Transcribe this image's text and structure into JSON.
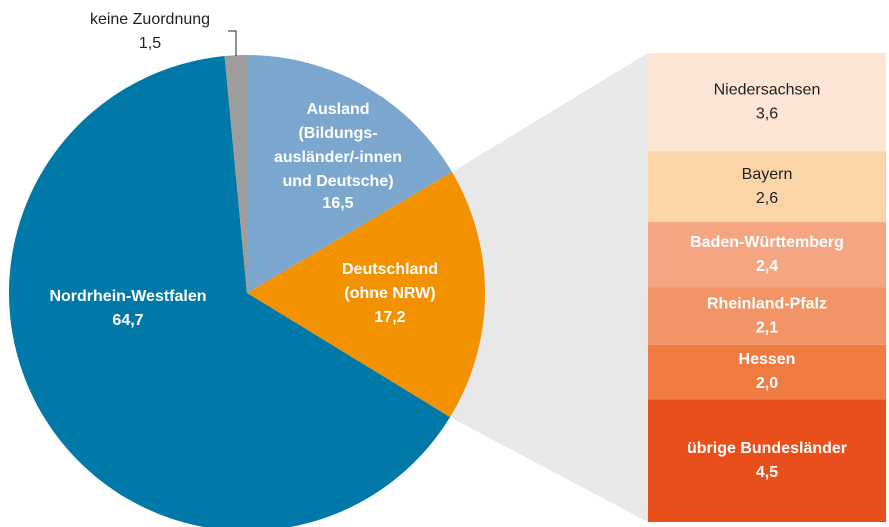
{
  "chart_data": {
    "type": "pie",
    "categories": [
      [
        "Ausland",
        "(Bildungs-",
        "ausländer/-innen",
        "und Deutsche)"
      ],
      [
        "Deutschland",
        "(ohne NRW)"
      ],
      [
        "Nordrhein-Westfalen"
      ],
      [
        "keine Zuordnung"
      ]
    ],
    "values": [
      16.5,
      17.2,
      64.7,
      1.5
    ],
    "value_labels": [
      "16,5",
      "17,2",
      "64,7",
      "1,5"
    ],
    "colors": [
      "#7ba7cf",
      "#f39200",
      "#0079a8",
      "#9d9d9d"
    ],
    "breakdown": {
      "type": "bar",
      "categories": [
        "Niedersachsen",
        "Bayern",
        "Baden-Württemberg",
        "Rheinland-Pfalz",
        "Hessen",
        "übrige Bundesländer"
      ],
      "values": [
        3.6,
        2.6,
        2.4,
        2.1,
        2.0,
        4.5
      ],
      "value_labels": [
        "3,6",
        "2,6",
        "2,4",
        "2,1",
        "2,0",
        "4,5"
      ],
      "colors": [
        "#fde5d6",
        "#fbd5a8",
        "#f5a582",
        "#f39466",
        "#ef7b43",
        "#e84f1b"
      ]
    }
  }
}
